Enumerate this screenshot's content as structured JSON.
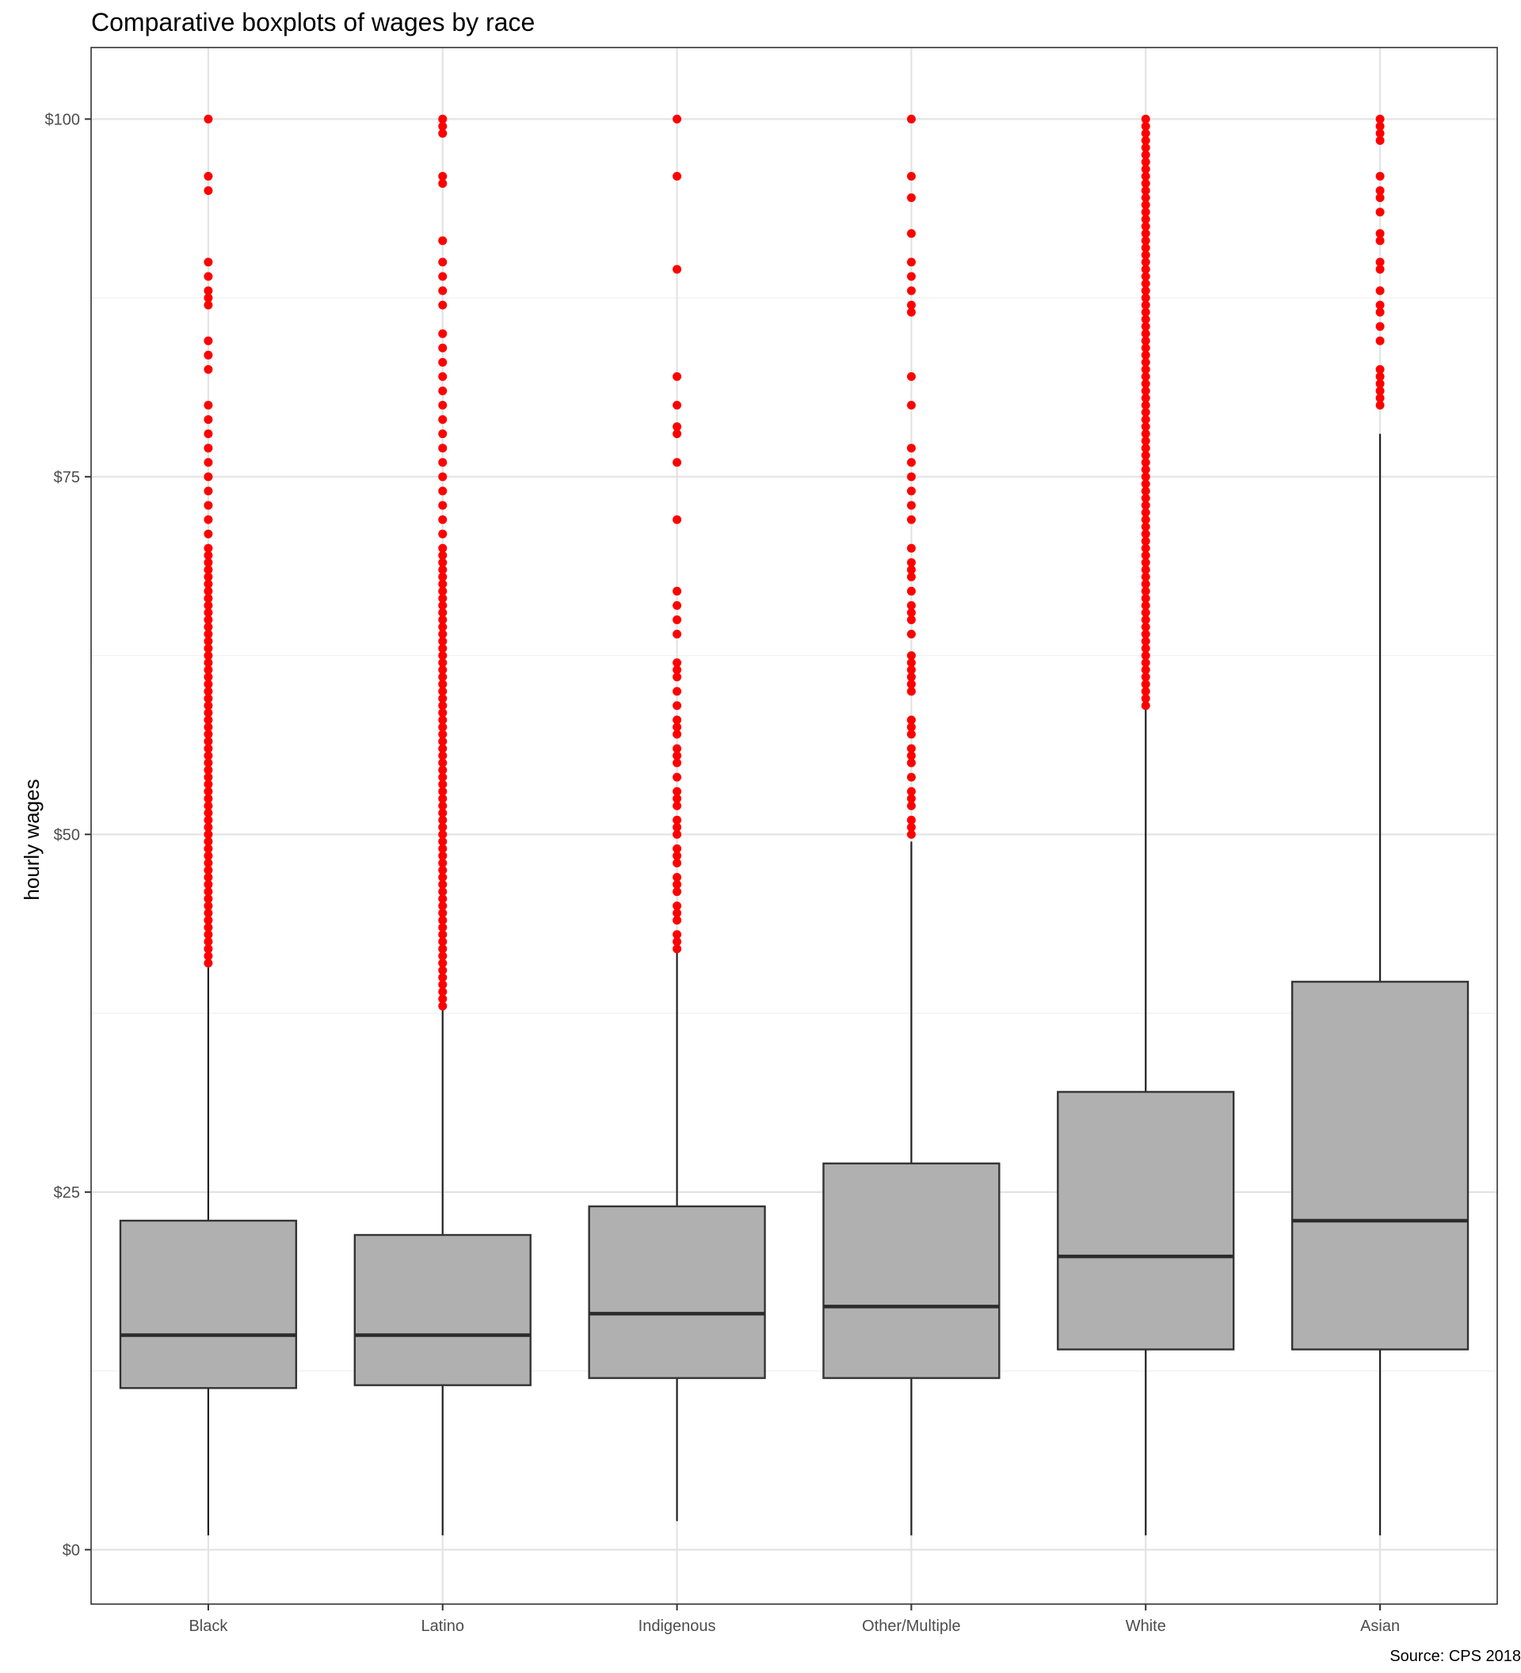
{
  "chart_data": {
    "type": "boxplot",
    "title": "Comparative boxplots of wages by race",
    "xlabel": "",
    "ylabel": "hourly wages",
    "caption": "Source: CPS 2018",
    "ylim": [
      -3.8,
      105
    ],
    "y_ticks": [
      0,
      25,
      50,
      75,
      100
    ],
    "y_tick_labels": [
      "$0",
      "$25",
      "$50",
      "$75",
      "$100"
    ],
    "grid": true,
    "box_fill": "#b0b0b0",
    "outlier_color": "#ff0000",
    "categories": [
      "Black",
      "Latino",
      "Indigenous",
      "Other/Multiple",
      "White",
      "Asian"
    ],
    "boxes": [
      {
        "label": "Black",
        "whisker_low": 1,
        "q1": 11.3,
        "median": 15,
        "q3": 23,
        "whisker_high": 40.7
      },
      {
        "label": "Latino",
        "whisker_low": 1,
        "q1": 11.5,
        "median": 15,
        "q3": 22,
        "whisker_high": 37.8
      },
      {
        "label": "Indigenous",
        "whisker_low": 2,
        "q1": 12,
        "median": 16.5,
        "q3": 24,
        "whisker_high": 42
      },
      {
        "label": "Other/Multiple",
        "whisker_low": 1,
        "q1": 12,
        "median": 17,
        "q3": 27,
        "whisker_high": 49.5
      },
      {
        "label": "White",
        "whisker_low": 1,
        "q1": 14,
        "median": 20.5,
        "q3": 32,
        "whisker_high": 59
      },
      {
        "label": "Asian",
        "whisker_low": 1,
        "q1": 14,
        "median": 23,
        "q3": 39.7,
        "whisker_high": 78
      }
    ],
    "outliers": [
      {
        "label": "Black",
        "values": [
          41,
          41.5,
          42,
          42.5,
          43,
          43.5,
          44,
          44.5,
          45,
          45.5,
          46,
          46.5,
          47,
          47.5,
          48,
          48.5,
          49,
          49.5,
          50,
          50.5,
          51,
          51.5,
          52,
          52.5,
          53,
          53.5,
          54,
          54.5,
          55,
          55.5,
          56,
          56.5,
          57,
          57.5,
          58,
          58.5,
          59,
          59.5,
          60,
          60.5,
          61,
          61.5,
          62,
          62.5,
          63,
          63.5,
          64,
          64.5,
          65,
          65.5,
          66,
          66.5,
          67,
          67.5,
          68,
          68.5,
          69,
          69.5,
          70,
          71,
          72,
          73,
          74,
          75,
          76,
          77,
          78,
          79,
          80,
          82.5,
          83.5,
          84.5,
          87,
          87.5,
          88,
          89,
          90,
          95,
          96,
          100
        ]
      },
      {
        "label": "Latino",
        "values": [
          38,
          38.5,
          39,
          39.5,
          40,
          40.5,
          41,
          41.5,
          42,
          42.5,
          43,
          43.5,
          44,
          44.5,
          45,
          45.5,
          46,
          46.5,
          47,
          47.5,
          48,
          48.5,
          49,
          49.5,
          50,
          50.5,
          51,
          51.5,
          52,
          52.5,
          53,
          53.5,
          54,
          54.5,
          55,
          55.5,
          56,
          56.5,
          57,
          57.5,
          58,
          58.5,
          59,
          59.5,
          60,
          60.5,
          61,
          61.5,
          62,
          62.5,
          63,
          63.5,
          64,
          64.5,
          65,
          65.5,
          66,
          66.5,
          67,
          67.5,
          68,
          68.5,
          69,
          69.5,
          70,
          71,
          72,
          73,
          74,
          75,
          76,
          77,
          78,
          79,
          80,
          81,
          82,
          83,
          84,
          85,
          87,
          88,
          89,
          90,
          91.5,
          95.5,
          96,
          99,
          99.5,
          100
        ]
      },
      {
        "label": "Indigenous",
        "values": [
          42,
          42.5,
          43,
          44,
          44.5,
          45,
          46,
          46.5,
          47,
          48,
          48.5,
          49,
          50,
          50.5,
          51,
          52,
          52.5,
          53,
          54,
          55,
          55.5,
          56,
          57,
          57.5,
          58,
          59,
          60,
          61,
          61.5,
          62,
          64,
          65,
          66,
          67,
          72,
          76,
          78,
          78.5,
          80,
          82,
          89.5,
          96,
          100
        ]
      },
      {
        "label": "Other/Multiple",
        "values": [
          50,
          50.5,
          51,
          52,
          52.5,
          53,
          54,
          55,
          55.5,
          56,
          57,
          57.5,
          58,
          60,
          60.5,
          61,
          61.5,
          62,
          62.5,
          64,
          65,
          65.5,
          66,
          67,
          68,
          68.5,
          69,
          70,
          72,
          73,
          74,
          75,
          76,
          77,
          80,
          82,
          86.5,
          87,
          88,
          89,
          90,
          92,
          94.5,
          96,
          100
        ]
      },
      {
        "label": "White",
        "values": [
          59,
          59.5,
          60,
          60.5,
          61,
          61.5,
          62,
          62.5,
          63,
          63.5,
          64,
          64.5,
          65,
          65.5,
          66,
          66.5,
          67,
          67.5,
          68,
          68.5,
          69,
          69.5,
          70,
          70.5,
          71,
          71.5,
          72,
          72.5,
          73,
          73.5,
          74,
          74.5,
          75,
          75.5,
          76,
          76.5,
          77,
          77.5,
          78,
          78.5,
          79,
          79.5,
          80,
          80.5,
          81,
          81.5,
          82,
          82.5,
          83,
          83.5,
          84,
          84.5,
          85,
          85.5,
          86,
          86.5,
          87,
          87.5,
          88,
          88.5,
          89,
          89.5,
          90,
          90.5,
          91,
          91.5,
          92,
          92.5,
          93,
          93.5,
          94,
          94.5,
          95,
          95.5,
          96,
          96.5,
          97,
          97.5,
          98,
          98.5,
          99,
          99.5,
          100
        ]
      },
      {
        "label": "Asian",
        "values": [
          80,
          80.5,
          81,
          81.5,
          82,
          82.5,
          84.5,
          85.5,
          86.5,
          87,
          88,
          89.5,
          90,
          91.5,
          92,
          93.5,
          94.5,
          95,
          96,
          98.5,
          99,
          99.5,
          100
        ]
      }
    ]
  }
}
